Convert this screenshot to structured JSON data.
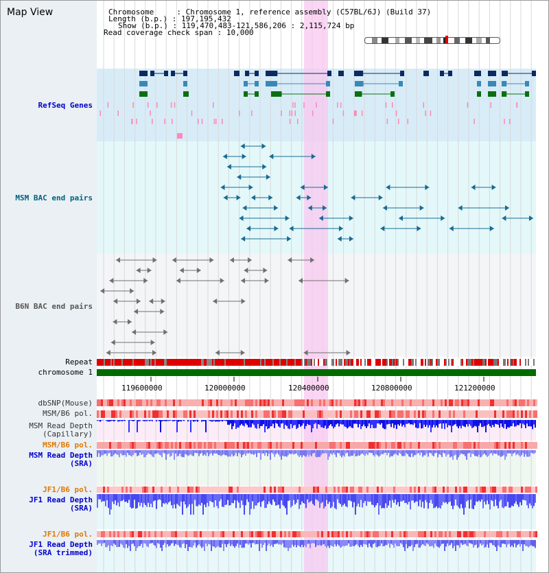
{
  "app": {
    "title": "Map View"
  },
  "info": {
    "chromosome_label": "Chromosome",
    "chromosome_value": "Chromosome 1, reference assembly (C57BL/6J) (Build 37)",
    "length_label": "Length (b.p.)",
    "length_value": "197,195,432",
    "show_label": "Show (b.p.)",
    "show_value": "119,470,483-121,586,206 : 2,115,724 bp",
    "coverage_label": "Read coverage check span",
    "coverage_value": "10,000"
  },
  "tracks": {
    "refseq": "RefSeq Genes",
    "msm_bac": "MSM BAC end pairs",
    "b6n_bac": "B6N BAC end pairs",
    "repeat": "Repeat",
    "chromosome": "chromosome 1",
    "dbsnp": "dbSNP(Mouse)",
    "msm_b6_pol": "MSM/B6 pol.",
    "msm_depth_cap_1": "MSM Read Depth",
    "msm_depth_cap_2": "(Capillary)",
    "msm_b6_pol_sra": "MSM/B6 pol.",
    "msm_depth_sra_1": "MSM Read Depth",
    "msm_depth_sra_2": "(SRA)",
    "jf1_b6_pol": "JF1/B6 pol.",
    "jf1_depth_sra_1": "JF1 Read Depth",
    "jf1_depth_sra_2": "(SRA)",
    "jf1_b6_pol_trim": "JF1/B6 pol.",
    "jf1_depth_trim_1": "JF1 Read Depth",
    "jf1_depth_trim_2": "(SRA trimmed)"
  },
  "axis": {
    "ticks": [
      "119600000",
      "120000000",
      "120400000",
      "120800000",
      "121200000"
    ]
  },
  "colors": {
    "refseq_label": "#0000cc",
    "msm_label": "#006080",
    "b6n_label": "#555555",
    "sra_label": "#0000cc",
    "pol_label": "#e07800",
    "highlight": "#f8c8f0",
    "refseq_bg": "#d8ecf8",
    "msm_bg": "#e4f8fa",
    "b6n_bg": "#f2f4f6",
    "repeat": "#e00000",
    "chromosome_bar": "#006c00"
  }
}
